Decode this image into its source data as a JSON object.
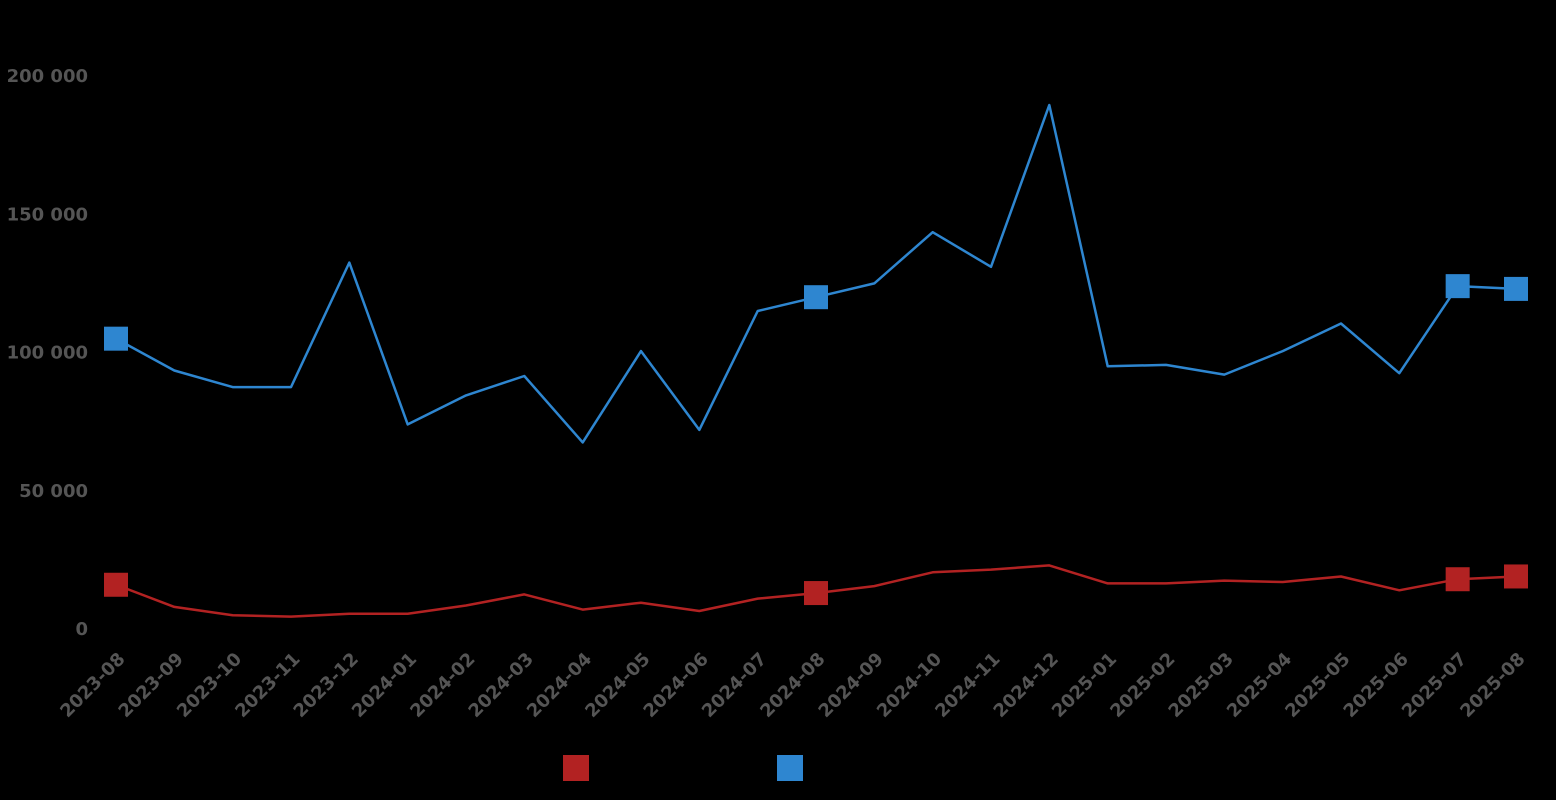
{
  "chart_data": {
    "type": "line",
    "categories": [
      "2023-08",
      "2023-09",
      "2023-10",
      "2023-11",
      "2023-12",
      "2024-01",
      "2024-02",
      "2024-03",
      "2024-04",
      "2024-05",
      "2024-06",
      "2024-07",
      "2024-08",
      "2024-09",
      "2024-10",
      "2024-11",
      "2024-12",
      "2025-01",
      "2025-02",
      "2025-03",
      "2025-04",
      "2025-05",
      "2025-06",
      "2025-07",
      "2025-08"
    ],
    "y_ticks": [
      "0",
      "50 000",
      "100 000",
      "150 000",
      "200 000"
    ],
    "ylim": [
      0,
      200000
    ],
    "grid": false,
    "legend_position": "bottom",
    "series": [
      {
        "name": "",
        "color": "#b22222",
        "values": [
          16000,
          8000,
          5000,
          4500,
          5500,
          5500,
          8500,
          12500,
          7000,
          9500,
          6500,
          11000,
          13000,
          15500,
          20500,
          21500,
          23000,
          16500,
          16500,
          17500,
          17000,
          19000,
          14000,
          18000,
          19000
        ],
        "marker_indices": [
          0,
          12,
          23,
          24
        ]
      },
      {
        "name": "",
        "color": "#2e86d0",
        "values": [
          105000,
          93500,
          87500,
          87500,
          132500,
          74000,
          84500,
          91500,
          67500,
          100500,
          72000,
          115000,
          120000,
          125000,
          143500,
          131000,
          189500,
          95000,
          95500,
          92000,
          100500,
          110500,
          92500,
          124000,
          123000
        ],
        "marker_indices": [
          0,
          12,
          23,
          24
        ]
      }
    ]
  }
}
